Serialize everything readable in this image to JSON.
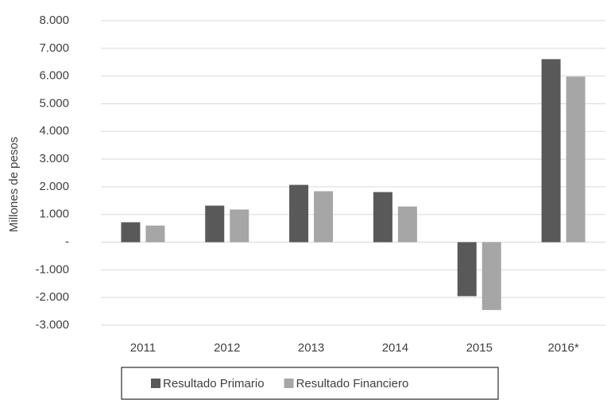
{
  "chart_data": {
    "type": "bar",
    "y_label": "Millones de pesos",
    "categories": [
      "2011",
      "2012",
      "2013",
      "2014",
      "2015",
      "2016*"
    ],
    "series": [
      {
        "name": "Resultado Primario",
        "color": "#595959",
        "values": [
          720,
          1320,
          2070,
          1810,
          -1950,
          6610
        ]
      },
      {
        "name": "Resultado Financiero",
        "color": "#a6a6a6",
        "values": [
          600,
          1180,
          1840,
          1290,
          -2450,
          5980
        ]
      }
    ],
    "ylim": [
      -3000,
      8000
    ],
    "yticks": [
      {
        "value": -3000,
        "label": "-3.000"
      },
      {
        "value": -2000,
        "label": "-2.000"
      },
      {
        "value": -1000,
        "label": "-1.000"
      },
      {
        "value": 0,
        "label": "-"
      },
      {
        "value": 1000,
        "label": "1.000"
      },
      {
        "value": 2000,
        "label": "2.000"
      },
      {
        "value": 3000,
        "label": "3.000"
      },
      {
        "value": 4000,
        "label": "4.000"
      },
      {
        "value": 5000,
        "label": "5.000"
      },
      {
        "value": 6000,
        "label": "6.000"
      },
      {
        "value": 7000,
        "label": "7.000"
      },
      {
        "value": 8000,
        "label": "8.000"
      }
    ],
    "grid": true
  }
}
